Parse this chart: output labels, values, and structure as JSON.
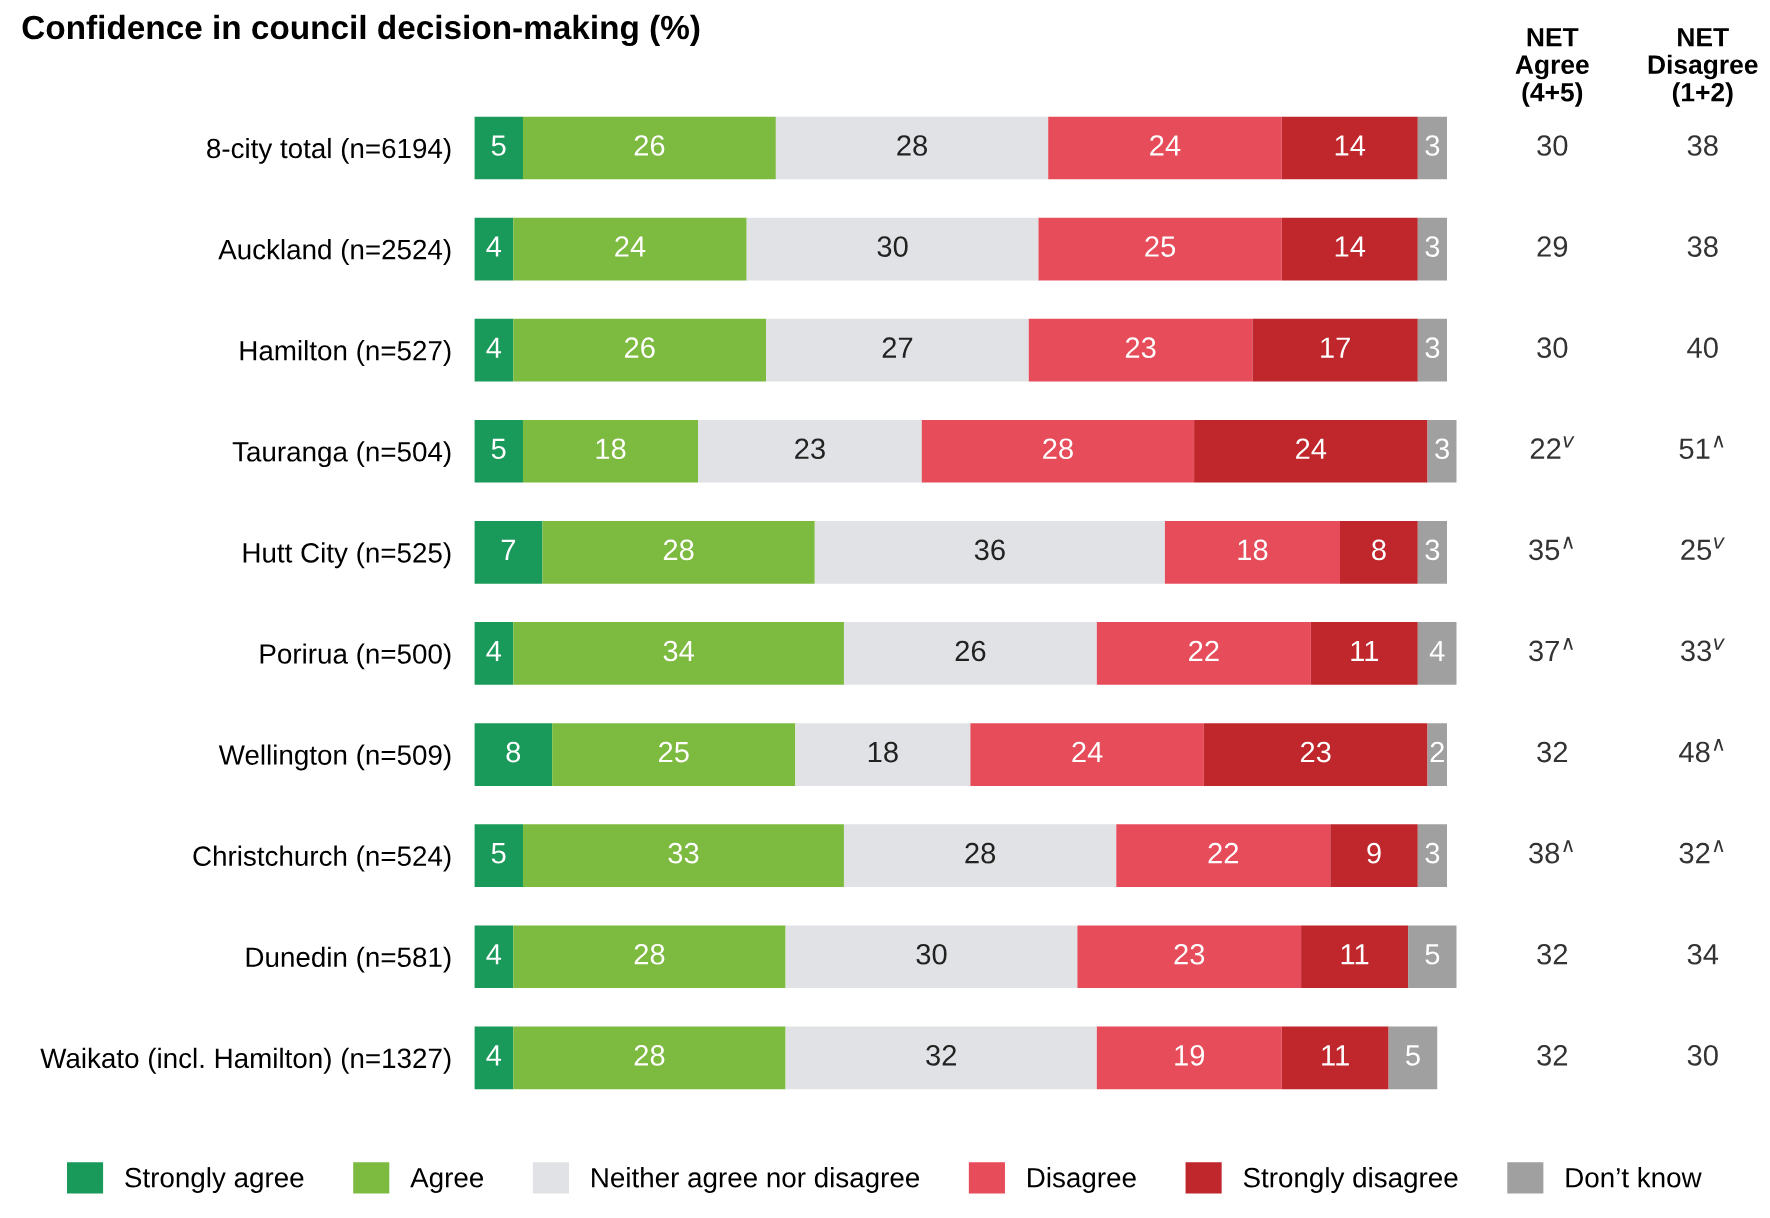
{
  "chart_data": {
    "type": "bar",
    "orientation": "horizontal",
    "stacked": true,
    "data_labels": true,
    "tick_labels": "y",
    "grid": false,
    "legend": "bottom",
    "title": "Confidence in council decision-making (%)",
    "categories": [
      "8-city total (n=6194)",
      "Auckland (n=2524)",
      "Hamilton (n=527)",
      "Tauranga (n=504)",
      "Hutt City (n=525)",
      "Porirua (n=500)",
      "Wellington (n=509)",
      "Christchurch (n=524)",
      "Dunedin (n=581)",
      "Waikato (incl. Hamilton) (n=1327)"
    ],
    "series": [
      {
        "name": "Strongly agree",
        "color": "#1a9a5a",
        "values": [
          5,
          4,
          4,
          5,
          7,
          4,
          8,
          5,
          4,
          4
        ]
      },
      {
        "name": "Agree",
        "color": "#7dba40",
        "values": [
          26,
          24,
          26,
          18,
          28,
          34,
          25,
          33,
          28,
          28
        ]
      },
      {
        "name": "Neither agree nor disagree",
        "color": "#e0e2e5",
        "values": [
          28,
          30,
          27,
          23,
          36,
          26,
          18,
          28,
          30,
          32
        ]
      },
      {
        "name": "Disagree",
        "color": "#e64c5a",
        "values": [
          24,
          25,
          23,
          28,
          18,
          22,
          24,
          22,
          23,
          19
        ]
      },
      {
        "name": "Strongly disagree",
        "color": "#c0272d",
        "values": [
          14,
          14,
          17,
          24,
          8,
          11,
          23,
          9,
          11,
          11
        ]
      },
      {
        "name": "Don’t know",
        "color": "#a0a0a0",
        "values": [
          3,
          3,
          3,
          3,
          3,
          4,
          2,
          3,
          5,
          5
        ]
      }
    ],
    "annotations": [
      "NET\nAgree\n(4+5)",
      "NET\nDisagree\n(1+2)",
      "30",
      "38",
      "29",
      "38",
      "30",
      "40",
      "22$^{v}$",
      "51$^{∧}$",
      "35$^{∧}$",
      "25$^{v}$",
      "37$^{∧}$",
      "33$^{v}$",
      "32",
      "48$^{∧}$",
      "38$^{∧}$",
      "32$^{∧}$",
      "32",
      "34",
      "32",
      "30"
    ]
  }
}
